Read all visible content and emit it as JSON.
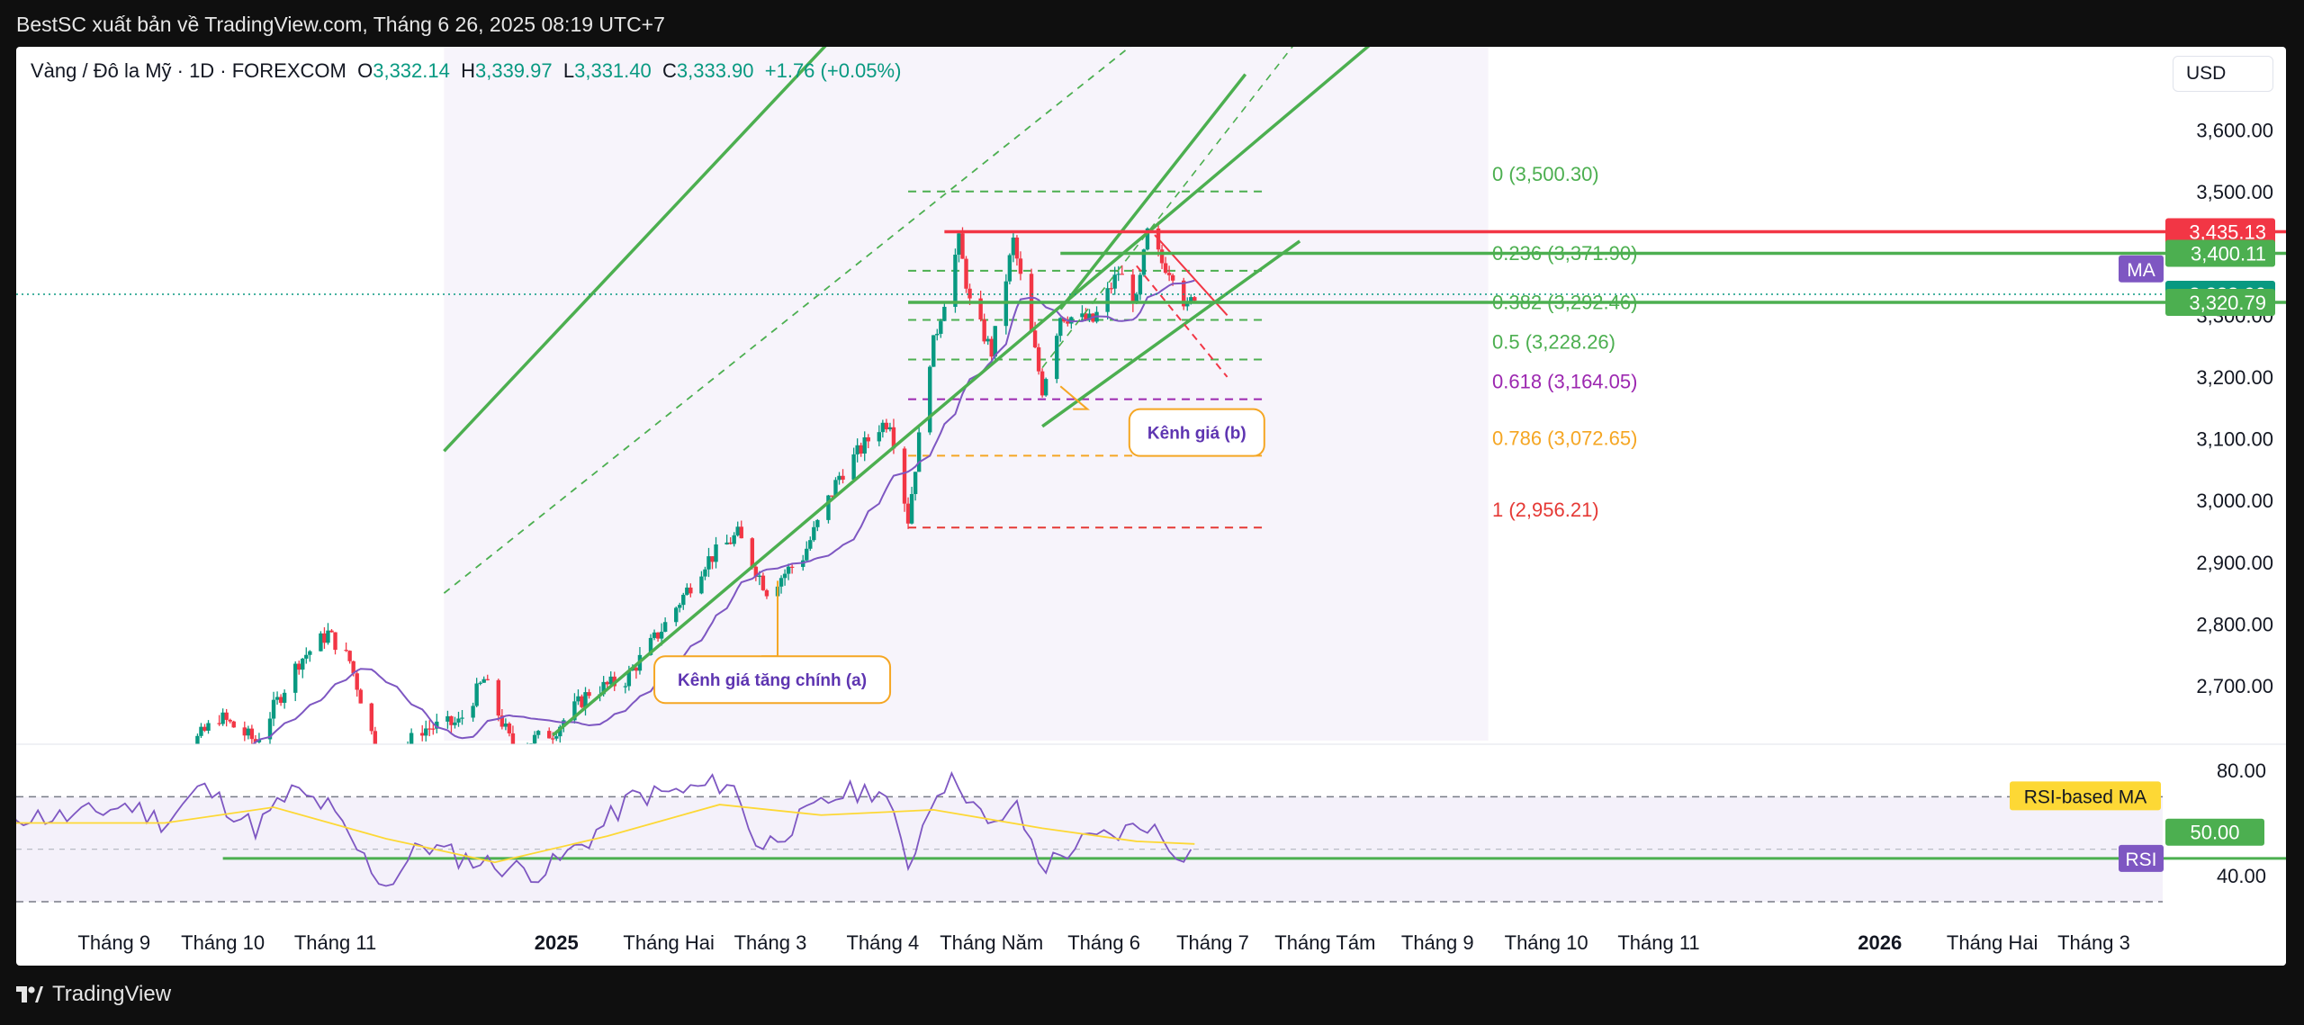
{
  "header": {
    "publisher": "BestSC xuất bản về TradingView.com, Tháng 6 26, 2025 08:19 UTC+7"
  },
  "footer": {
    "brand": "TradingView",
    "logo_icon": "tradingview-logo-icon"
  },
  "legend": {
    "symbol": "Vàng / Đô la Mỹ · 1D · FOREXCOM",
    "o_label": "O",
    "o": "3,332.14",
    "h_label": "H",
    "h": "3,339.97",
    "l_label": "L",
    "l": "3,331.40",
    "c_label": "C",
    "c": "3,333.90",
    "change": "+1.76 (+0.05%)"
  },
  "currency": "USD",
  "colors": {
    "up": "#089981",
    "down": "#f23645",
    "channel": "#4caf50",
    "ma": "#7e57c2",
    "rsi": "#7e57c2",
    "rsi_ma": "#fdd835",
    "fib_0": "#4caf50",
    "fib_382": "#4caf50",
    "fib_618": "#9c27b0",
    "fib_786": "#f5a623",
    "fib_1": "#e53935"
  },
  "chart_data": [
    {
      "type": "candlestick",
      "ylim": [
        2620,
        3720
      ],
      "y_ticks": [
        "3,600.00",
        "3,500.00",
        "3,400.00",
        "3,300.00",
        "3,200.00",
        "3,100.00",
        "3,000.00",
        "2,900.00",
        "2,800.00",
        "2,700.00"
      ],
      "y_tick_values": [
        3600,
        3500,
        3400,
        3300,
        3200,
        3100,
        3000,
        2900,
        2800,
        2700
      ],
      "x_labels": [
        {
          "label": "Tháng 9",
          "date": "2024-09-01",
          "bold": false
        },
        {
          "label": "Tháng 10",
          "date": "2024-10-01",
          "bold": false
        },
        {
          "label": "Tháng 11",
          "date": "2024-11-01",
          "bold": false
        },
        {
          "label": "2025",
          "date": "2025-01-01",
          "bold": true
        },
        {
          "label": "Tháng Hai",
          "date": "2025-02-01",
          "bold": false
        },
        {
          "label": "Tháng 3",
          "date": "2025-03-01",
          "bold": false
        },
        {
          "label": "Tháng 4",
          "date": "2025-04-01",
          "bold": false
        },
        {
          "label": "Tháng Năm",
          "date": "2025-05-01",
          "bold": false
        },
        {
          "label": "Tháng 6",
          "date": "2025-06-01",
          "bold": false
        },
        {
          "label": "Tháng 7",
          "date": "2025-07-01",
          "bold": false
        },
        {
          "label": "Tháng Tám",
          "date": "2025-08-01",
          "bold": false
        },
        {
          "label": "Tháng 9",
          "date": "2025-09-01",
          "bold": false
        },
        {
          "label": "Tháng 10",
          "date": "2025-10-01",
          "bold": false
        },
        {
          "label": "Tháng 11",
          "date": "2025-11-01",
          "bold": false
        },
        {
          "label": "2026",
          "date": "2026-01-01",
          "bold": true
        },
        {
          "label": "Tháng Hai",
          "date": "2026-02-01",
          "bold": false
        },
        {
          "label": "Tháng 3",
          "date": "2026-03-01",
          "bold": false
        }
      ],
      "price_path": [
        [
          "2024-09-10",
          2505
        ],
        [
          "2024-09-20",
          2590
        ],
        [
          "2024-09-30",
          2650
        ],
        [
          "2024-10-10",
          2610
        ],
        [
          "2024-10-22",
          2740
        ],
        [
          "2024-10-30",
          2785
        ],
        [
          "2024-11-05",
          2740
        ],
        [
          "2024-11-14",
          2565
        ],
        [
          "2024-11-25",
          2630
        ],
        [
          "2024-12-05",
          2640
        ],
        [
          "2024-12-12",
          2710
        ],
        [
          "2024-12-20",
          2600
        ],
        [
          "2024-12-31",
          2625
        ],
        [
          "2025-01-10",
          2690
        ],
        [
          "2025-01-20",
          2710
        ],
        [
          "2025-01-31",
          2800
        ],
        [
          "2025-02-11",
          2900
        ],
        [
          "2025-02-20",
          2945
        ],
        [
          "2025-02-28",
          2855
        ],
        [
          "2025-03-10",
          2910
        ],
        [
          "2025-03-20",
          3040
        ],
        [
          "2025-03-31",
          3120
        ],
        [
          "2025-04-03",
          3130
        ],
        [
          "2025-04-08",
          2970
        ],
        [
          "2025-04-14",
          3230
        ],
        [
          "2025-04-22",
          3420
        ],
        [
          "2025-04-25",
          3320
        ],
        [
          "2025-05-01",
          3240
        ],
        [
          "2025-05-07",
          3420
        ],
        [
          "2025-05-15",
          3180
        ],
        [
          "2025-05-20",
          3300
        ],
        [
          "2025-05-29",
          3290
        ],
        [
          "2025-06-05",
          3370
        ],
        [
          "2025-06-10",
          3320
        ],
        [
          "2025-06-13",
          3432
        ],
        [
          "2025-06-17",
          3385
        ],
        [
          "2025-06-20",
          3370
        ],
        [
          "2025-06-24",
          3310
        ],
        [
          "2025-06-26",
          3334
        ]
      ],
      "price_labels": [
        {
          "value": 3435.13,
          "text": "3,435.13",
          "color": "#f23645"
        },
        {
          "value": 3400.11,
          "text": "3,400.11",
          "color": "#4caf50"
        },
        {
          "value": 3333.9,
          "text": "3,333.90",
          "color": "#089981"
        },
        {
          "value": 3320.79,
          "text": "3,320.79",
          "color": "#4caf50"
        }
      ],
      "ma_tag": "MA",
      "horizontal_levels": [
        {
          "value": 3435.13,
          "color": "#f23645",
          "from": "2025-04-18"
        },
        {
          "value": 3400.11,
          "color": "#4caf50",
          "from": "2025-05-20"
        },
        {
          "value": 3320.79,
          "color": "#4caf50",
          "from": "2025-04-08"
        }
      ],
      "current_price": 3333.9,
      "fibonacci": {
        "from": "2025-04-08",
        "to": "2025-07-15",
        "levels": [
          {
            "ratio_label": "0",
            "value_label": "3,500.30",
            "value": 3500.3,
            "color": "#4caf50"
          },
          {
            "ratio_label": "0.236",
            "value_label": "3,371.90",
            "value": 3371.9,
            "color": "#4caf50"
          },
          {
            "ratio_label": "0.382",
            "value_label": "3,292.46",
            "value": 3292.46,
            "color": "#4caf50"
          },
          {
            "ratio_label": "0.5",
            "value_label": "3,228.26",
            "value": 3228.26,
            "color": "#4caf50"
          },
          {
            "ratio_label": "0.618",
            "value_label": "3,164.05",
            "value": 3164.05,
            "color": "#9c27b0"
          },
          {
            "ratio_label": "0.786",
            "value_label": "3,072.65",
            "value": 3072.65,
            "color": "#f5a623"
          },
          {
            "ratio_label": "1",
            "value_label": "2,956.21",
            "value": 2956.21,
            "color": "#e53935"
          }
        ]
      },
      "channel_a": {
        "lower": [
          [
            "2024-12-31",
            2620
          ],
          [
            "2025-09-05",
            3850
          ]
        ],
        "upper": [
          [
            "2024-12-01",
            3080
          ],
          [
            "2025-06-25",
            4365
          ]
        ],
        "mid": [
          [
            "2024-12-01",
            2850
          ],
          [
            "2025-09-05",
            4150
          ]
        ],
        "shade_from": "2024-12-01",
        "shade_to": "2025-09-15"
      },
      "channel_b": {
        "lower": [
          [
            "2025-05-15",
            3120
          ],
          [
            "2025-07-25",
            3420
          ]
        ],
        "upper": [
          [
            "2025-05-20",
            3310
          ],
          [
            "2025-07-10",
            3690
          ]
        ]
      },
      "falling_channel": [
        [
          [
            "2025-06-15",
            3430
          ],
          [
            "2025-07-05",
            3300
          ]
        ],
        [
          [
            "2025-06-10",
            3380
          ],
          [
            "2025-07-05",
            3200
          ]
        ]
      ],
      "annotations": [
        {
          "text": "Kênh giá tăng chính (a)",
          "anchor": [
            "2025-03-03",
            2870
          ],
          "box": [
            "2025-01-28",
            2710
          ]
        },
        {
          "text": "Kênh giá (b)",
          "anchor": [
            "2025-05-20",
            3185
          ],
          "box": [
            "2025-06-08",
            3110
          ]
        }
      ]
    },
    {
      "type": "line",
      "name": "RSI",
      "ylim": [
        30,
        90
      ],
      "y_ticks": [
        "80.00",
        "40.00"
      ],
      "y_tick_values": [
        80,
        40
      ],
      "band": [
        70,
        30
      ],
      "support_level": 46.5,
      "rsi_value_label": "50.00",
      "rsi_ma_tag": "RSI-based MA",
      "rsi_tag": "RSI",
      "path": [
        [
          "2024-08-01",
          63
        ],
        [
          "2024-08-20",
          62
        ],
        [
          "2024-09-05",
          67
        ],
        [
          "2024-09-15",
          60
        ],
        [
          "2024-09-25",
          74
        ],
        [
          "2024-10-10",
          58
        ],
        [
          "2024-10-20",
          72
        ],
        [
          "2024-10-30",
          66
        ],
        [
          "2024-11-08",
          48
        ],
        [
          "2024-11-15",
          36
        ],
        [
          "2024-11-25",
          52
        ],
        [
          "2024-12-05",
          47
        ],
        [
          "2024-12-15",
          44
        ],
        [
          "2024-12-28",
          41
        ],
        [
          "2025-01-10",
          54
        ],
        [
          "2025-01-22",
          70
        ],
        [
          "2025-02-05",
          72
        ],
        [
          "2025-02-18",
          76
        ],
        [
          "2025-02-26",
          50
        ],
        [
          "2025-03-10",
          62
        ],
        [
          "2025-03-20",
          71
        ],
        [
          "2025-04-01",
          73
        ],
        [
          "2025-04-08",
          44
        ],
        [
          "2025-04-16",
          74
        ],
        [
          "2025-04-22",
          76
        ],
        [
          "2025-05-01",
          56
        ],
        [
          "2025-05-07",
          68
        ],
        [
          "2025-05-15",
          43
        ],
        [
          "2025-05-25",
          52
        ],
        [
          "2025-06-05",
          56
        ],
        [
          "2025-06-13",
          60
        ],
        [
          "2025-06-20",
          50
        ],
        [
          "2025-06-26",
          48
        ]
      ],
      "ma_path": [
        [
          "2024-08-01",
          60
        ],
        [
          "2024-09-15",
          60
        ],
        [
          "2024-10-15",
          66
        ],
        [
          "2024-11-15",
          54
        ],
        [
          "2024-12-15",
          45
        ],
        [
          "2025-01-15",
          55
        ],
        [
          "2025-02-15",
          67
        ],
        [
          "2025-03-15",
          63
        ],
        [
          "2025-04-15",
          65
        ],
        [
          "2025-05-15",
          58
        ],
        [
          "2025-06-10",
          53
        ],
        [
          "2025-06-26",
          52
        ]
      ]
    }
  ]
}
